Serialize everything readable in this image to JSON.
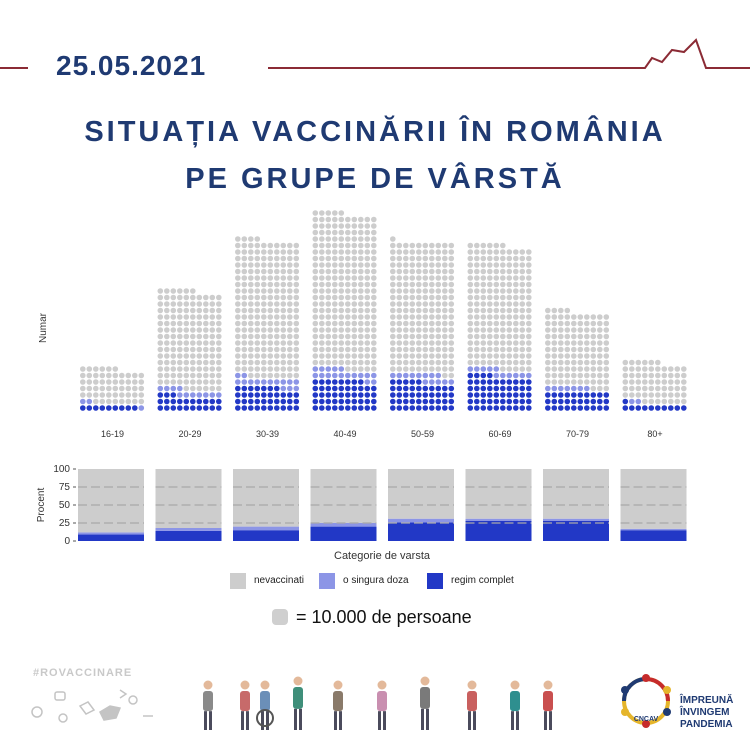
{
  "header": {
    "date": "25.05.2021",
    "title_line1": "SITUAȚIA VACCINĂRII ÎN ROMÂNIA",
    "title_line2": "PE GRUPE DE VÂRSTĂ"
  },
  "colors": {
    "nevaccinati": "#cdcdcd",
    "o_singura_doza": "#8c95e6",
    "regim_complet": "#2238c6",
    "title": "#1f3a72",
    "header_line": "#8b2b35"
  },
  "chart_data": [
    {
      "type": "waffle",
      "ylabel": "Numar",
      "unit_note": "= 10.000 de persoane",
      "categories": [
        "16-19",
        "20-29",
        "30-39",
        "40-49",
        "50-59",
        "60-69",
        "70-79",
        "80+"
      ],
      "series": [
        {
          "name": "nevaccinati",
          "values": [
            54,
            152,
            212,
            240,
            203,
            191,
            117,
            63
          ]
        },
        {
          "name": "o singura doza",
          "values": [
            3,
            11,
            15,
            17,
            13,
            11,
            7,
            2
          ]
        },
        {
          "name": "regim complet",
          "values": [
            9,
            23,
            37,
            48,
            45,
            54,
            30,
            11
          ]
        }
      ]
    },
    {
      "type": "bar",
      "stacked": true,
      "xlabel": "Categorie de varsta",
      "ylabel": "Procent",
      "ylim": [
        0,
        100
      ],
      "yticks": [
        "0",
        "25",
        "50",
        "75",
        "100"
      ],
      "categories": [
        "16-19",
        "20-29",
        "30-39",
        "40-49",
        "50-59",
        "60-69",
        "70-79",
        "80+"
      ],
      "series": [
        {
          "name": "nevaccinati",
          "values": [
            88,
            82,
            80,
            75,
            69,
            69,
            69,
            83
          ]
        },
        {
          "name": "o singura doza",
          "values": [
            3,
            4,
            5,
            5,
            5,
            3,
            3,
            2
          ]
        },
        {
          "name": "regim complet",
          "values": [
            9,
            14,
            15,
            20,
            26,
            28,
            28,
            15
          ]
        }
      ],
      "grid": true
    }
  ],
  "legend": {
    "items": [
      "nevaccinati",
      "o singura doza",
      "regim complet"
    ]
  },
  "footer": {
    "hashtag": "#ROVACCINARE",
    "logo_badge": "CNCAV",
    "logo_line1": "ÎMPREUNĂ",
    "logo_line2": "ÎNVINGEM",
    "logo_line3": "PANDEMIA",
    "logo_icon": "ring-of-people-icon",
    "illustration_icon": "people-figures-illustration"
  }
}
